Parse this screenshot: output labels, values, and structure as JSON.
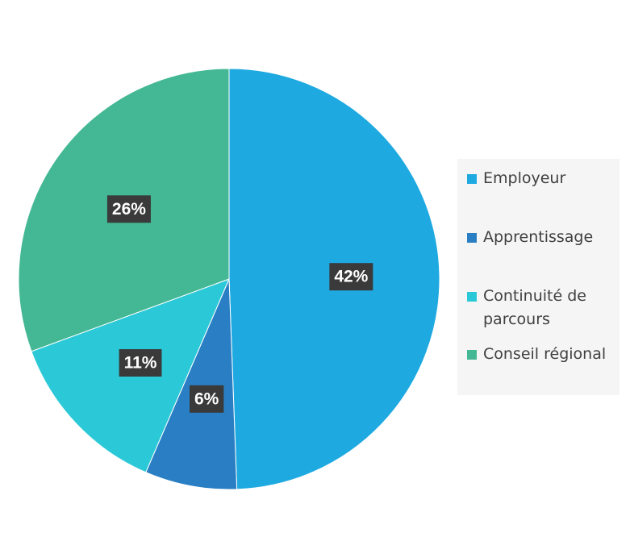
{
  "chart_data": {
    "type": "pie",
    "categories": [
      "Employeur",
      "Apprentissage",
      "Continuité de parcours",
      "Conseil régional"
    ],
    "values": [
      42,
      6,
      11,
      26
    ],
    "value_labels": [
      "42%",
      "6%",
      "11%",
      "26%"
    ],
    "colors": [
      "#1ea9e1",
      "#2a7fc4",
      "#2bc9d8",
      "#44b894"
    ],
    "legend": "right"
  }
}
